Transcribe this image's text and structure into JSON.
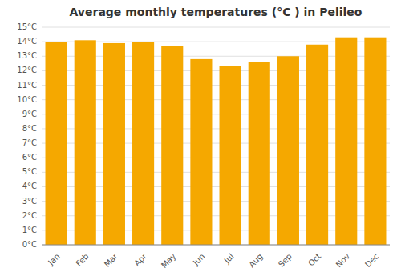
{
  "chart_data": {
    "type": "bar",
    "title": "Average monthly temperatures (°C ) in Pelileo",
    "categories": [
      "Jan",
      "Feb",
      "Mar",
      "Apr",
      "May",
      "Jun",
      "Jul",
      "Aug",
      "Sep",
      "Oct",
      "Nov",
      "Dec"
    ],
    "values": [
      14.0,
      14.1,
      13.9,
      14.0,
      13.7,
      12.8,
      12.3,
      12.6,
      13.0,
      13.8,
      14.3,
      14.3
    ],
    "color": "#F5A800",
    "ylim": [
      0,
      15
    ],
    "yticks": [
      {
        "value": 0,
        "label": "0°C"
      },
      {
        "value": 1,
        "label": "1°C"
      },
      {
        "value": 2,
        "label": "2°C"
      },
      {
        "value": 3,
        "label": "3°C"
      },
      {
        "value": 4,
        "label": "4°C"
      },
      {
        "value": 5,
        "label": "5°C"
      },
      {
        "value": 6,
        "label": "6°C"
      },
      {
        "value": 7,
        "label": "7°C"
      },
      {
        "value": 8,
        "label": "8°C"
      },
      {
        "value": 9,
        "label": "9°C"
      },
      {
        "value": 10,
        "label": "10°C"
      },
      {
        "value": 11,
        "label": "11°C"
      },
      {
        "value": 12,
        "label": "12°C"
      },
      {
        "value": 13,
        "label": "13°C"
      },
      {
        "value": 14,
        "label": "14°C"
      },
      {
        "value": 15,
        "label": "15°C"
      }
    ],
    "grid": true
  }
}
